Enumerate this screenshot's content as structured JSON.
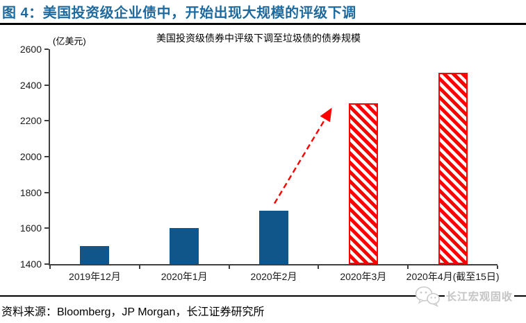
{
  "header": {
    "title": "图 4：美国投资级企业债中，开始出现大规模的评级下调"
  },
  "footer": {
    "source": "资料来源：Bloomberg，JP Morgan，长江证券研究所",
    "logo_text": "长江宏观固收",
    "logo_icon": "wechat-icon"
  },
  "colors": {
    "title_blue": "#1e6a9e",
    "bar_blue": "#11568a",
    "hatch_red": "#fe0000",
    "axis_gray": "#3f3f3f"
  },
  "chart_data": {
    "type": "bar",
    "title": "美国投资级债券中评级下调至垃圾债的债券规模",
    "unit_label": "(亿美元)",
    "categories": [
      "2019年12月",
      "2020年1月",
      "2020年2月",
      "2020年3月",
      "2020年4月(截至15日)"
    ],
    "values": [
      1500,
      1600,
      1700,
      2300,
      2470
    ],
    "bar_styles": [
      "solid",
      "solid",
      "solid",
      "hatched",
      "hatched"
    ],
    "xlabel": "",
    "ylabel": "亿美元",
    "ylim": [
      1400,
      2600
    ],
    "ytick_step": 200,
    "grid": false,
    "legend": "none",
    "annotation": {
      "type": "dashed-arrow",
      "from_category": "2020年2月",
      "to_category": "2020年3月",
      "color": "#fe0000"
    }
  }
}
